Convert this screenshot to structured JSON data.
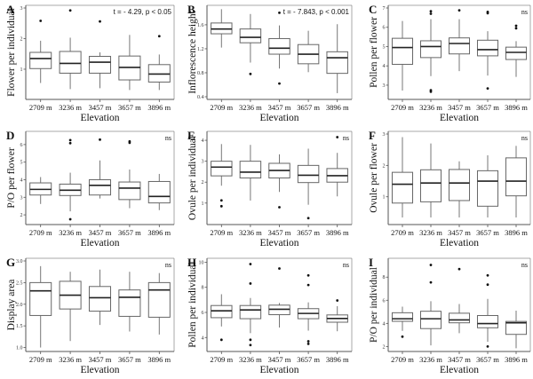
{
  "chart_data": [
    {
      "type": "boxplot",
      "panel": "A",
      "ylabel": "Flower per individual",
      "xlabel": "Elevation",
      "categories": [
        "2709 m",
        "3236 m",
        "3457 m",
        "3657 m",
        "3896 m"
      ],
      "ylim": [
        0.1,
        3.0
      ],
      "yticks": [
        1,
        2,
        3
      ],
      "annotation": "t = - 4.29, p < 0.05",
      "boxes": [
        {
          "whislo": 0.55,
          "q1": 1.02,
          "med": 1.35,
          "q3": 1.55,
          "whishi": 1.93,
          "fliers": [
            2.58
          ]
        },
        {
          "whislo": 0.35,
          "q1": 0.87,
          "med": 1.19,
          "q3": 1.58,
          "whishi": 2.03,
          "fliers": [
            2.92
          ]
        },
        {
          "whislo": 0.38,
          "q1": 0.87,
          "med": 1.23,
          "q3": 1.42,
          "whishi": 1.55,
          "fliers": [
            2.56
          ]
        },
        {
          "whislo": 0.32,
          "q1": 0.65,
          "med": 1.06,
          "q3": 1.43,
          "whishi": 2.12,
          "fliers": []
        },
        {
          "whislo": 0.32,
          "q1": 0.58,
          "med": 0.84,
          "q3": 1.15,
          "whishi": 1.48,
          "fliers": [
            2.08
          ]
        }
      ]
    },
    {
      "type": "boxplot",
      "panel": "B",
      "ylabel": "Inflorescence height",
      "xlabel": "Elevation",
      "categories": [
        "2709 m",
        "3236 m",
        "3457 m",
        "3657 m",
        "3896 m"
      ],
      "ylim": [
        0.4,
        1.88
      ],
      "yticks": [
        0.4,
        0.8,
        1.2,
        1.6
      ],
      "ytick_labels": [
        "0.4",
        "0.8",
        "1.2",
        "1.6"
      ],
      "annotation": "t = - 7.843, p < 0.001",
      "boxes": [
        {
          "whislo": 1.22,
          "q1": 1.45,
          "med": 1.53,
          "q3": 1.63,
          "whishi": 1.86,
          "fliers": []
        },
        {
          "whislo": 0.97,
          "q1": 1.3,
          "med": 1.39,
          "q3": 1.53,
          "whishi": 1.78,
          "fliers": [
            0.78
          ]
        },
        {
          "whislo": 0.87,
          "q1": 1.11,
          "med": 1.21,
          "q3": 1.37,
          "whishi": 1.59,
          "fliers": [
            1.8,
            0.62
          ]
        },
        {
          "whislo": 0.81,
          "q1": 0.95,
          "med": 1.11,
          "q3": 1.27,
          "whishi": 1.5,
          "fliers": []
        },
        {
          "whislo": 0.46,
          "q1": 0.79,
          "med": 1.05,
          "q3": 1.15,
          "whishi": 1.61,
          "fliers": []
        }
      ]
    },
    {
      "type": "boxplot",
      "panel": "C",
      "ylabel": "Pollen per flower",
      "xlabel": "Elevation",
      "categories": [
        "2709 m",
        "3236 m",
        "3457 m",
        "3657 m",
        "3896 m"
      ],
      "ylim": [
        2.4,
        7.0
      ],
      "yticks": [
        3,
        4,
        5,
        6,
        7
      ],
      "annotation": "ns",
      "boxes": [
        {
          "whislo": 2.72,
          "q1": 4.08,
          "med": 4.95,
          "q3": 5.43,
          "whishi": 6.33,
          "fliers": []
        },
        {
          "whislo": 3.47,
          "q1": 4.43,
          "med": 5.0,
          "q3": 5.3,
          "whishi": 6.42,
          "fliers": [
            6.7,
            6.83,
            2.66,
            2.74
          ]
        },
        {
          "whislo": 3.73,
          "q1": 4.62,
          "med": 5.16,
          "q3": 5.45,
          "whishi": 6.42,
          "fliers": [
            6.88
          ]
        },
        {
          "whislo": 3.5,
          "q1": 4.52,
          "med": 4.84,
          "q3": 5.33,
          "whishi": 5.8,
          "fliers": [
            6.73,
            6.8,
            2.83
          ]
        },
        {
          "whislo": 3.43,
          "q1": 4.33,
          "med": 4.7,
          "q3": 4.97,
          "whishi": 5.28,
          "fliers": [
            5.95,
            6.08
          ]
        }
      ]
    },
    {
      "type": "boxplot",
      "panel": "D",
      "ylabel": "P/O per flower",
      "xlabel": "Elevation",
      "categories": [
        "2709 m",
        "3236 m",
        "3457 m",
        "3657 m",
        "3896 m"
      ],
      "ylim": [
        1.6,
        6.6
      ],
      "yticks": [
        2,
        3,
        4,
        5,
        6
      ],
      "annotation": "ns",
      "boxes": [
        {
          "whislo": 2.62,
          "q1": 3.13,
          "med": 3.45,
          "q3": 3.82,
          "whishi": 4.15,
          "fliers": []
        },
        {
          "whislo": 2.2,
          "q1": 3.1,
          "med": 3.4,
          "q3": 3.75,
          "whishi": 4.4,
          "fliers": [
            6.08,
            6.25,
            1.75
          ]
        },
        {
          "whislo": 2.93,
          "q1": 3.13,
          "med": 3.68,
          "q3": 4.0,
          "whishi": 5.1,
          "fliers": [
            6.28
          ]
        },
        {
          "whislo": 2.38,
          "q1": 2.87,
          "med": 3.52,
          "q3": 3.87,
          "whishi": 4.58,
          "fliers": [
            6.1,
            6.18
          ]
        },
        {
          "whislo": 2.27,
          "q1": 2.68,
          "med": 3.05,
          "q3": 3.9,
          "whishi": 4.33,
          "fliers": []
        }
      ]
    },
    {
      "type": "boxplot",
      "panel": "E",
      "ylabel": "Ovule per individual",
      "xlabel": "Elevation",
      "categories": [
        "2709 m",
        "3236 m",
        "3457 m",
        "3657 m",
        "3896 m"
      ],
      "ylim": [
        0.1,
        4.3
      ],
      "yticks": [
        1,
        2,
        3,
        4
      ],
      "annotation": "ns",
      "boxes": [
        {
          "whislo": 1.83,
          "q1": 2.3,
          "med": 2.72,
          "q3": 3.0,
          "whishi": 3.82,
          "fliers": [
            1.13,
            0.85
          ]
        },
        {
          "whislo": 1.12,
          "q1": 2.2,
          "med": 2.48,
          "q3": 3.0,
          "whishi": 3.78,
          "fliers": []
        },
        {
          "whislo": 1.53,
          "q1": 2.2,
          "med": 2.56,
          "q3": 2.9,
          "whishi": 3.33,
          "fliers": [
            0.8
          ]
        },
        {
          "whislo": 0.92,
          "q1": 1.98,
          "med": 2.33,
          "q3": 2.8,
          "whishi": 3.6,
          "fliers": [
            0.28
          ]
        },
        {
          "whislo": 1.32,
          "q1": 2.0,
          "med": 2.31,
          "q3": 2.65,
          "whishi": 3.4,
          "fliers": [
            4.15
          ]
        }
      ]
    },
    {
      "type": "boxplot",
      "panel": "F",
      "ylabel": "Ovule per flower",
      "xlabel": "Elevation",
      "categories": [
        "2709 m",
        "3236 m",
        "3457 m",
        "3657 m",
        "3896 m"
      ],
      "ylim": [
        0.2,
        3.0
      ],
      "yticks": [
        1,
        2,
        3
      ],
      "annotation": "ns",
      "boxes": [
        {
          "whislo": 0.34,
          "q1": 0.8,
          "med": 1.4,
          "q3": 1.78,
          "whishi": 2.9,
          "fliers": []
        },
        {
          "whislo": 0.34,
          "q1": 0.84,
          "med": 1.44,
          "q3": 1.86,
          "whishi": 2.7,
          "fliers": []
        },
        {
          "whislo": 0.34,
          "q1": 0.88,
          "med": 1.44,
          "q3": 1.87,
          "whishi": 2.13,
          "fliers": []
        },
        {
          "whislo": 0.34,
          "q1": 0.7,
          "med": 1.5,
          "q3": 1.83,
          "whishi": 2.32,
          "fliers": []
        },
        {
          "whislo": 0.34,
          "q1": 1.03,
          "med": 1.5,
          "q3": 2.24,
          "whishi": 2.62,
          "fliers": []
        }
      ]
    },
    {
      "type": "boxplot",
      "panel": "G",
      "ylabel": "Display area",
      "xlabel": "Elevation",
      "categories": [
        "2709 m",
        "3236 m",
        "3457 m",
        "3657 m",
        "3896 m"
      ],
      "ylim": [
        0.97,
        3.0
      ],
      "yticks": [
        1.0,
        1.5,
        2.0,
        2.5,
        3.0
      ],
      "ytick_labels": [
        "1.0",
        "1.5",
        "2.0",
        "2.5",
        "3.0"
      ],
      "annotation": "ns",
      "boxes": [
        {
          "whislo": 1.0,
          "q1": 1.74,
          "med": 2.31,
          "q3": 2.5,
          "whishi": 2.88,
          "fliers": []
        },
        {
          "whislo": 1.15,
          "q1": 1.89,
          "med": 2.21,
          "q3": 2.53,
          "whishi": 2.75,
          "fliers": []
        },
        {
          "whislo": 1.52,
          "q1": 1.84,
          "med": 2.15,
          "q3": 2.41,
          "whishi": 2.8,
          "fliers": []
        },
        {
          "whislo": 1.37,
          "q1": 1.72,
          "med": 2.16,
          "q3": 2.33,
          "whishi": 2.75,
          "fliers": []
        },
        {
          "whislo": 1.3,
          "q1": 1.7,
          "med": 2.33,
          "q3": 2.5,
          "whishi": 2.72,
          "fliers": []
        }
      ]
    },
    {
      "type": "boxplot",
      "panel": "H",
      "ylabel": "Pollen per individual",
      "xlabel": "Elevation",
      "categories": [
        "2709 m",
        "3236 m",
        "3457 m",
        "3657 m",
        "3896 m"
      ],
      "ylim": [
        3.1,
        10.1
      ],
      "yticks": [
        4,
        6,
        8,
        10
      ],
      "annotation": "ns",
      "boxes": [
        {
          "whislo": 4.88,
          "q1": 5.58,
          "med": 6.13,
          "q3": 6.55,
          "whishi": 7.45,
          "fliers": [
            3.82
          ]
        },
        {
          "whislo": 4.35,
          "q1": 5.5,
          "med": 6.2,
          "q3": 6.55,
          "whishi": 7.15,
          "fliers": [
            9.85,
            8.3,
            3.82,
            3.4
          ]
        },
        {
          "whislo": 4.8,
          "q1": 5.82,
          "med": 6.25,
          "q3": 6.58,
          "whishi": 6.75,
          "fliers": [
            9.5
          ]
        },
        {
          "whislo": 4.55,
          "q1": 5.5,
          "med": 5.92,
          "q3": 6.3,
          "whishi": 6.8,
          "fliers": [
            8.95,
            8.18,
            3.7,
            3.5
          ]
        },
        {
          "whislo": 4.5,
          "q1": 5.22,
          "med": 5.52,
          "q3": 5.8,
          "whishi": 6.5,
          "fliers": [
            6.95
          ]
        }
      ]
    },
    {
      "type": "boxplot",
      "panel": "I",
      "ylabel": "P/O per individual",
      "xlabel": "Elevation",
      "categories": [
        "2709 m",
        "3236 m",
        "3457 m",
        "3657 m",
        "3896 m"
      ],
      "ylim": [
        1.8,
        9.4
      ],
      "yticks": [
        2,
        4,
        6,
        8
      ],
      "annotation": "ns",
      "boxes": [
        {
          "whislo": 3.35,
          "q1": 4.18,
          "med": 4.4,
          "q3": 4.92,
          "whishi": 5.45,
          "fliers": [
            2.85
          ]
        },
        {
          "whislo": 2.1,
          "q1": 3.55,
          "med": 4.4,
          "q3": 5.05,
          "whishi": 5.92,
          "fliers": [
            9.05,
            7.55
          ]
        },
        {
          "whislo": 3.15,
          "q1": 4.05,
          "med": 4.3,
          "q3": 4.88,
          "whishi": 5.68,
          "fliers": [
            8.7
          ]
        },
        {
          "whislo": 2.4,
          "q1": 3.62,
          "med": 3.98,
          "q3": 4.68,
          "whishi": 6.12,
          "fliers": [
            8.15,
            7.35,
            2.0
          ]
        },
        {
          "whislo": 1.85,
          "q1": 3.05,
          "med": 4.05,
          "q3": 4.17,
          "whishi": 5.1,
          "fliers": []
        }
      ]
    }
  ]
}
